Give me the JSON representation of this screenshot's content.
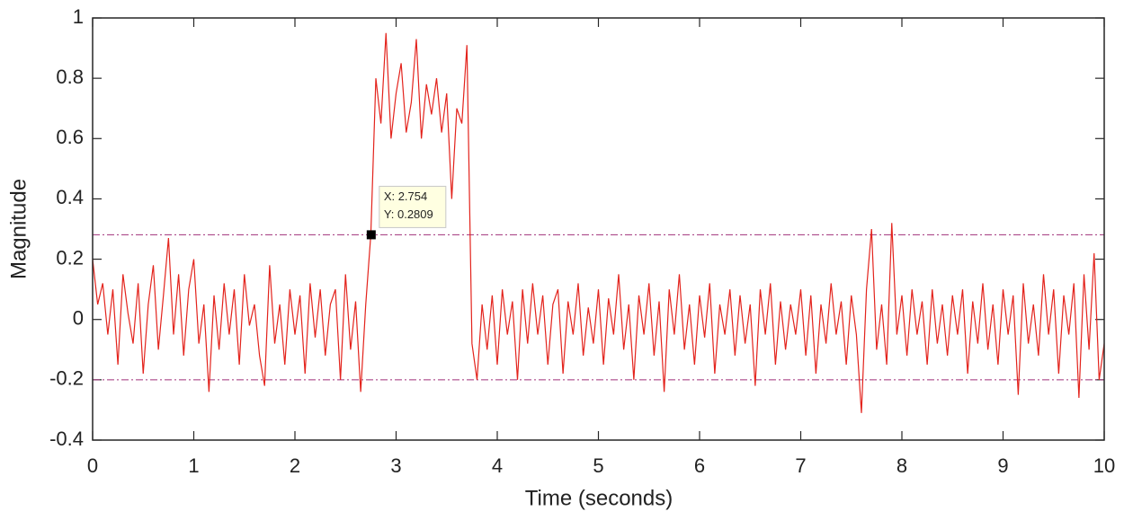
{
  "chart_data": {
    "type": "line",
    "xlabel": "Time (seconds)",
    "ylabel": "Magnitude",
    "color": "#e3231c",
    "x": [
      0,
      0.05,
      0.1,
      0.15,
      0.2,
      0.25,
      0.3,
      0.35,
      0.4,
      0.45,
      0.5,
      0.55,
      0.6,
      0.65,
      0.7,
      0.75,
      0.8,
      0.85,
      0.9,
      0.95,
      1,
      1.05,
      1.1,
      1.15,
      1.2,
      1.25,
      1.3,
      1.35,
      1.4,
      1.45,
      1.5,
      1.55,
      1.6,
      1.65,
      1.7,
      1.75,
      1.8,
      1.85,
      1.9,
      1.95,
      2,
      2.05,
      2.1,
      2.15,
      2.2,
      2.25,
      2.3,
      2.35,
      2.4,
      2.45,
      2.5,
      2.55,
      2.6,
      2.65,
      2.7,
      2.75,
      2.8,
      2.85,
      2.9,
      2.95,
      3,
      3.05,
      3.1,
      3.15,
      3.2,
      3.25,
      3.3,
      3.35,
      3.4,
      3.45,
      3.5,
      3.55,
      3.6,
      3.65,
      3.7,
      3.75,
      3.8,
      3.85,
      3.9,
      3.95,
      4,
      4.05,
      4.1,
      4.15,
      4.2,
      4.25,
      4.3,
      4.35,
      4.4,
      4.45,
      4.5,
      4.55,
      4.6,
      4.65,
      4.7,
      4.75,
      4.8,
      4.85,
      4.9,
      4.95,
      5,
      5.05,
      5.1,
      5.15,
      5.2,
      5.25,
      5.3,
      5.35,
      5.4,
      5.45,
      5.5,
      5.55,
      5.6,
      5.65,
      5.7,
      5.75,
      5.8,
      5.85,
      5.9,
      5.95,
      6,
      6.05,
      6.1,
      6.15,
      6.2,
      6.25,
      6.3,
      6.35,
      6.4,
      6.45,
      6.5,
      6.55,
      6.6,
      6.65,
      6.7,
      6.75,
      6.8,
      6.85,
      6.9,
      6.95,
      7,
      7.05,
      7.1,
      7.15,
      7.2,
      7.25,
      7.3,
      7.35,
      7.4,
      7.45,
      7.5,
      7.55,
      7.6,
      7.65,
      7.7,
      7.75,
      7.8,
      7.85,
      7.9,
      7.95,
      8,
      8.05,
      8.1,
      8.15,
      8.2,
      8.25,
      8.3,
      8.35,
      8.4,
      8.45,
      8.5,
      8.55,
      8.6,
      8.65,
      8.7,
      8.75,
      8.8,
      8.85,
      8.9,
      8.95,
      9,
      9.05,
      9.1,
      9.15,
      9.2,
      9.25,
      9.3,
      9.35,
      9.4,
      9.45,
      9.5,
      9.55,
      9.6,
      9.65,
      9.7,
      9.75,
      9.8,
      9.85,
      9.9,
      9.95,
      10
    ],
    "values": [
      0.2,
      0.05,
      0.12,
      -0.05,
      0.1,
      -0.15,
      0.15,
      0.02,
      -0.08,
      0.12,
      -0.18,
      0.05,
      0.18,
      -0.1,
      0.08,
      0.27,
      -0.05,
      0.15,
      -0.12,
      0.1,
      0.2,
      -0.08,
      0.05,
      -0.24,
      0.08,
      -0.1,
      0.12,
      -0.05,
      0.1,
      -0.15,
      0.15,
      -0.02,
      0.05,
      -0.12,
      -0.22,
      0.18,
      -0.08,
      0.05,
      -0.15,
      0.1,
      -0.05,
      0.08,
      -0.18,
      0.12,
      -0.06,
      0.1,
      -0.12,
      0.05,
      0.1,
      -0.2,
      0.15,
      -0.1,
      0.06,
      -0.24,
      0.05,
      0.2809,
      0.8,
      0.65,
      0.95,
      0.6,
      0.75,
      0.85,
      0.62,
      0.72,
      0.93,
      0.6,
      0.78,
      0.68,
      0.8,
      0.62,
      0.75,
      0.4,
      0.7,
      0.65,
      0.91,
      -0.08,
      -0.2,
      0.05,
      -0.1,
      0.08,
      -0.15,
      0.1,
      -0.05,
      0.06,
      -0.2,
      0.1,
      -0.08,
      0.12,
      -0.05,
      0.08,
      -0.15,
      0.05,
      0.1,
      -0.18,
      0.06,
      -0.05,
      0.12,
      -0.12,
      0.04,
      -0.08,
      0.1,
      -0.15,
      0.07,
      -0.05,
      0.15,
      -0.1,
      0.05,
      -0.2,
      0.08,
      -0.05,
      0.12,
      -0.12,
      0.06,
      -0.24,
      0.1,
      -0.05,
      0.15,
      -0.1,
      0.05,
      -0.15,
      0.08,
      -0.06,
      0.12,
      -0.18,
      0.05,
      -0.05,
      0.1,
      -0.12,
      0.08,
      -0.08,
      0.05,
      -0.22,
      0.1,
      -0.05,
      0.12,
      -0.15,
      0.06,
      -0.1,
      0.05,
      -0.05,
      0.1,
      -0.12,
      0.08,
      -0.18,
      0.05,
      -0.08,
      0.12,
      -0.05,
      0.06,
      -0.15,
      0.08,
      -0.05,
      -0.31,
      0.1,
      0.3,
      -0.1,
      0.05,
      -0.15,
      0.32,
      -0.05,
      0.08,
      -0.12,
      0.1,
      -0.05,
      0.06,
      -0.15,
      0.1,
      -0.08,
      0.05,
      -0.12,
      0.08,
      -0.05,
      0.1,
      -0.18,
      0.06,
      -0.08,
      0.12,
      -0.1,
      0.05,
      -0.15,
      0.1,
      -0.05,
      0.08,
      -0.25,
      0.12,
      -0.08,
      0.05,
      -0.12,
      0.15,
      -0.05,
      0.1,
      -0.18,
      0.08,
      -0.05,
      0.12,
      -0.26,
      0.15,
      -0.1,
      0.22,
      -0.2,
      -0.08
    ],
    "thresholds": [
      {
        "value": 0.2809,
        "color": "#a0307a"
      },
      {
        "value": -0.2,
        "color": "#a0307a"
      }
    ],
    "datatip": {
      "x": 2.754,
      "y": 0.2809,
      "label_x": "X: 2.754",
      "label_y": "Y: 0.2809"
    },
    "xlim": [
      0,
      10
    ],
    "ylim": [
      -0.4,
      1
    ],
    "xticks": [
      0,
      1,
      2,
      3,
      4,
      5,
      6,
      7,
      8,
      9,
      10
    ],
    "yticks": [
      -0.4,
      -0.2,
      0,
      0.2,
      0.4,
      0.6,
      0.8,
      1
    ],
    "grid": false
  }
}
